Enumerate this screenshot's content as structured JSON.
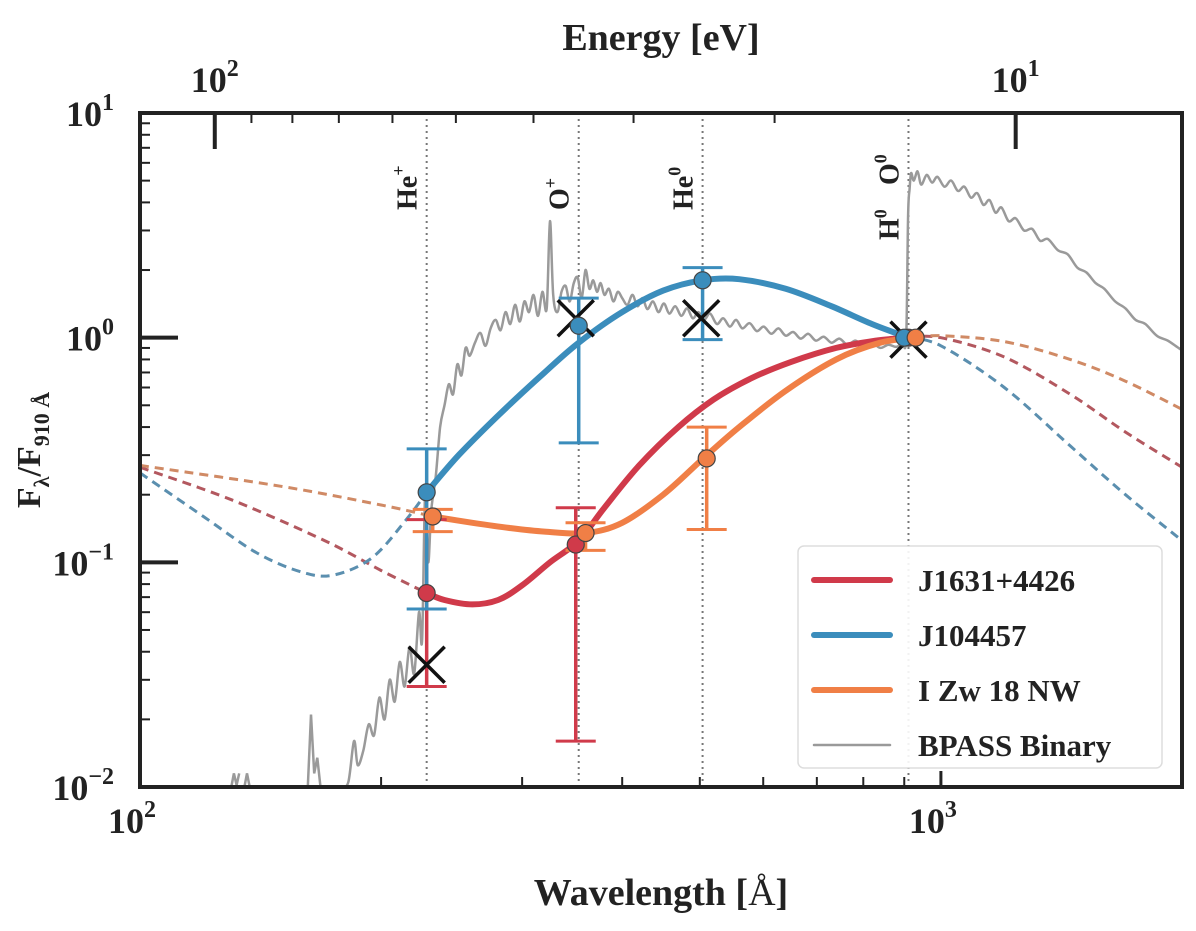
{
  "colors": {
    "red": "#d03a4a",
    "blue": "#3b8dbc",
    "orange": "#f07f46",
    "gray": "#9a9a9a",
    "red_ext": "#b3585f",
    "blue_ext": "#5b8faf",
    "orange_ext": "#d08a65",
    "axis": "#222222",
    "marker_edge": "#7a2a30",
    "cross": "#111111",
    "line_marker": "#666666"
  },
  "chart_data": {
    "type": "line",
    "xscale": "log",
    "yscale": "log",
    "xlim": [
      100,
      2000
    ],
    "ylim": [
      0.01,
      10
    ],
    "xlabel": {
      "main": "Wavelength [",
      "unit": "Å",
      "end": "]"
    },
    "ylabel": {
      "F": "F",
      "lambda": "λ",
      "slash": "/F",
      "sub": "910 Å"
    },
    "top_axis": {
      "label": "Energy [eV]",
      "ticks": [
        {
          "value": 100,
          "base": "10",
          "exp": "2"
        },
        {
          "value": 10,
          "base": "10",
          "exp": "1"
        }
      ]
    },
    "x_ticks": [
      {
        "value": 100,
        "base": "10",
        "exp": "2"
      },
      {
        "value": 1000,
        "base": "10",
        "exp": "3"
      }
    ],
    "y_ticks": [
      {
        "value": 10,
        "base": "10",
        "exp": "1"
      },
      {
        "value": 1,
        "base": "10",
        "exp": "0"
      },
      {
        "value": 0.1,
        "base": "10",
        "exp": "−1"
      },
      {
        "value": 0.01,
        "base": "10",
        "exp": "−2"
      }
    ],
    "ion_lines": [
      {
        "name": "He",
        "sup": "+",
        "wavelength": 228
      },
      {
        "name": "O",
        "sup": "+",
        "wavelength": 353
      },
      {
        "name": "He",
        "sup": "0",
        "wavelength": 504
      },
      {
        "name": "H",
        "sup": "0",
        "wavelength": 911
      },
      {
        "name": "O",
        "sup": "0",
        "wavelength": 911
      }
    ],
    "series": [
      {
        "name": "J1631+4426",
        "color_key": "red",
        "curve": [
          [
            228,
            0.073
          ],
          [
            240,
            0.068
          ],
          [
            260,
            0.065
          ],
          [
            280,
            0.068
          ],
          [
            300,
            0.079
          ],
          [
            325,
            0.1
          ],
          [
            353,
            0.125
          ],
          [
            380,
            0.175
          ],
          [
            420,
            0.27
          ],
          [
            470,
            0.4
          ],
          [
            520,
            0.53
          ],
          [
            580,
            0.66
          ],
          [
            650,
            0.78
          ],
          [
            740,
            0.9
          ],
          [
            830,
            0.97
          ],
          [
            911,
            1.0
          ]
        ],
        "extension": [
          [
            100,
            0.265
          ],
          [
            130,
            0.19
          ],
          [
            170,
            0.125
          ],
          [
            200,
            0.092
          ],
          [
            228,
            0.073
          ],
          [
            911,
            1.0
          ],
          [
            1000,
            1.0
          ],
          [
            1200,
            0.82
          ],
          [
            1450,
            0.56
          ],
          [
            1700,
            0.38
          ],
          [
            2000,
            0.265
          ]
        ],
        "points": [
          {
            "x": 228,
            "y": 0.073,
            "ylo": 0.028,
            "yhi": 0.155
          },
          {
            "x": 350,
            "y": 0.12,
            "ylo": 0.016,
            "yhi": 0.175
          },
          {
            "x": 911,
            "y": 1.0,
            "ylo": 1.0,
            "yhi": 1.0
          }
        ]
      },
      {
        "name": "J104457",
        "color_key": "blue",
        "curve": [
          [
            228,
            0.205
          ],
          [
            250,
            0.3
          ],
          [
            280,
            0.45
          ],
          [
            320,
            0.7
          ],
          [
            353,
            0.95
          ],
          [
            400,
            1.3
          ],
          [
            450,
            1.62
          ],
          [
            504,
            1.8
          ],
          [
            560,
            1.82
          ],
          [
            640,
            1.65
          ],
          [
            730,
            1.38
          ],
          [
            820,
            1.15
          ],
          [
            911,
            1.0
          ]
        ],
        "extension": [
          [
            100,
            0.25
          ],
          [
            120,
            0.16
          ],
          [
            140,
            0.11
          ],
          [
            160,
            0.09
          ],
          [
            175,
            0.088
          ],
          [
            195,
            0.105
          ],
          [
            215,
            0.155
          ],
          [
            228,
            0.205
          ],
          [
            911,
            1.0
          ],
          [
            1000,
            0.92
          ],
          [
            1200,
            0.6
          ],
          [
            1450,
            0.33
          ],
          [
            1700,
            0.2
          ],
          [
            2000,
            0.125
          ]
        ],
        "points": [
          {
            "x": 228,
            "y": 0.205,
            "ylo": 0.062,
            "yhi": 0.32
          },
          {
            "x": 353,
            "y": 1.13,
            "ylo": 0.34,
            "yhi": 1.5
          },
          {
            "x": 504,
            "y": 1.8,
            "ylo": 0.98,
            "yhi": 2.05
          },
          {
            "x": 900,
            "y": 1.0,
            "ylo": 1.0,
            "yhi": 1.0
          }
        ]
      },
      {
        "name": "I Zw 18 NW",
        "color_key": "orange",
        "curve": [
          [
            232,
            0.16
          ],
          [
            260,
            0.15
          ],
          [
            290,
            0.142
          ],
          [
            320,
            0.137
          ],
          [
            360,
            0.135
          ],
          [
            400,
            0.15
          ],
          [
            450,
            0.2
          ],
          [
            505,
            0.29
          ],
          [
            560,
            0.4
          ],
          [
            640,
            0.58
          ],
          [
            740,
            0.8
          ],
          [
            840,
            0.95
          ],
          [
            930,
            1.0
          ]
        ],
        "extension": [
          [
            100,
            0.27
          ],
          [
            150,
            0.218
          ],
          [
            200,
            0.18
          ],
          [
            232,
            0.16
          ],
          [
            930,
            1.0
          ],
          [
            1000,
            1.02
          ],
          [
            1200,
            0.96
          ],
          [
            1450,
            0.8
          ],
          [
            1700,
            0.64
          ],
          [
            2000,
            0.48
          ]
        ],
        "points": [
          {
            "x": 232,
            "y": 0.16,
            "ylo": 0.137,
            "yhi": 0.172
          },
          {
            "x": 360,
            "y": 0.135,
            "ylo": 0.113,
            "yhi": 0.15
          },
          {
            "x": 510,
            "y": 0.29,
            "ylo": 0.14,
            "yhi": 0.4
          },
          {
            "x": 930,
            "y": 1.0,
            "ylo": 1.0,
            "yhi": 1.0
          }
        ]
      }
    ],
    "reference_points": [
      {
        "x": 228,
        "y": 0.035
      },
      {
        "x": 350,
        "y": 1.22
      },
      {
        "x": 502,
        "y": 1.22
      },
      {
        "x": 911,
        "y": 0.98
      }
    ],
    "bpass": {
      "name": "BPASS Binary",
      "spectrum": [
        [
          178,
          0.01
        ],
        [
          182,
          0.0105
        ],
        [
          185,
          0.016
        ],
        [
          187,
          0.0125
        ],
        [
          190,
          0.0145
        ],
        [
          193,
          0.019
        ],
        [
          196,
          0.017
        ],
        [
          199,
          0.025
        ],
        [
          202,
          0.02
        ],
        [
          205,
          0.03
        ],
        [
          208,
          0.024
        ],
        [
          211,
          0.036
        ],
        [
          214,
          0.028
        ],
        [
          217,
          0.042
        ],
        [
          220,
          0.032
        ],
        [
          223,
          0.06
        ],
        [
          225,
          0.045
        ],
        [
          227,
          0.2
        ],
        [
          229,
          0.1
        ],
        [
          231,
          0.17
        ],
        [
          234,
          0.24
        ],
        [
          237,
          0.4
        ],
        [
          240,
          0.5
        ],
        [
          243,
          0.62
        ],
        [
          246,
          0.56
        ],
        [
          249,
          0.76
        ],
        [
          252,
          0.68
        ],
        [
          255,
          0.9
        ],
        [
          258,
          0.83
        ],
        [
          262,
          0.95
        ],
        [
          266,
          1.05
        ],
        [
          270,
          0.92
        ],
        [
          274,
          1.1
        ],
        [
          278,
          1.2
        ],
        [
          282,
          1.08
        ],
        [
          286,
          1.3
        ],
        [
          290,
          1.15
        ],
        [
          294,
          1.4
        ],
        [
          298,
          1.18
        ],
        [
          302,
          1.45
        ],
        [
          306,
          1.3
        ],
        [
          310,
          1.55
        ],
        [
          314,
          1.25
        ],
        [
          318,
          1.6
        ],
        [
          322,
          1.35
        ],
        [
          325,
          3.3
        ],
        [
          328,
          1.55
        ],
        [
          332,
          1.3
        ],
        [
          336,
          1.6
        ],
        [
          340,
          1.7
        ],
        [
          344,
          1.45
        ],
        [
          348,
          1.75
        ],
        [
          352,
          1.85
        ],
        [
          356,
          1.5
        ],
        [
          360,
          2.0
        ],
        [
          364,
          1.65
        ],
        [
          368,
          1.8
        ],
        [
          372,
          1.6
        ],
        [
          376,
          1.75
        ],
        [
          380,
          1.55
        ],
        [
          385,
          1.65
        ],
        [
          390,
          1.45
        ],
        [
          395,
          1.6
        ],
        [
          400,
          1.5
        ],
        [
          406,
          1.4
        ],
        [
          412,
          1.55
        ],
        [
          418,
          1.38
        ],
        [
          424,
          1.5
        ],
        [
          430,
          1.34
        ],
        [
          437,
          1.45
        ],
        [
          444,
          1.3
        ],
        [
          451,
          1.42
        ],
        [
          458,
          1.28
        ],
        [
          466,
          1.38
        ],
        [
          474,
          1.25
        ],
        [
          482,
          1.35
        ],
        [
          490,
          1.22
        ],
        [
          498,
          1.3
        ],
        [
          506,
          1.2
        ],
        [
          515,
          1.28
        ],
        [
          525,
          1.15
        ],
        [
          535,
          1.22
        ],
        [
          545,
          1.12
        ],
        [
          555,
          1.2
        ],
        [
          565,
          1.1
        ],
        [
          577,
          1.16
        ],
        [
          589,
          1.07
        ],
        [
          601,
          1.12
        ],
        [
          614,
          1.04
        ],
        [
          627,
          1.1
        ],
        [
          640,
          1.02
        ],
        [
          654,
          1.06
        ],
        [
          668,
          0.99
        ],
        [
          683,
          1.04
        ],
        [
          698,
          0.97
        ],
        [
          714,
          1.01
        ],
        [
          730,
          0.95
        ],
        [
          747,
          0.99
        ],
        [
          764,
          0.93
        ],
        [
          782,
          0.97
        ],
        [
          800,
          0.92
        ],
        [
          820,
          0.95
        ],
        [
          840,
          0.9
        ],
        [
          860,
          0.93
        ],
        [
          880,
          0.91
        ],
        [
          895,
          0.95
        ],
        [
          905,
          1.0
        ],
        [
          910,
          3.5
        ],
        [
          914,
          4.6
        ],
        [
          918,
          5.4
        ],
        [
          925,
          5.0
        ],
        [
          935,
          5.5
        ],
        [
          945,
          4.8
        ],
        [
          960,
          5.3
        ],
        [
          975,
          4.9
        ],
        [
          990,
          5.2
        ],
        [
          1010,
          4.7
        ],
        [
          1030,
          5.0
        ],
        [
          1050,
          4.5
        ],
        [
          1070,
          4.7
        ],
        [
          1090,
          4.2
        ],
        [
          1110,
          4.4
        ],
        [
          1130,
          3.9
        ],
        [
          1150,
          4.1
        ],
        [
          1170,
          3.6
        ],
        [
          1190,
          3.8
        ],
        [
          1215,
          3.3
        ],
        [
          1240,
          3.4
        ],
        [
          1270,
          3.0
        ],
        [
          1300,
          3.05
        ],
        [
          1330,
          2.7
        ],
        [
          1360,
          2.75
        ],
        [
          1400,
          2.45
        ],
        [
          1440,
          2.35
        ],
        [
          1480,
          2.05
        ],
        [
          1520,
          1.95
        ],
        [
          1560,
          1.75
        ],
        [
          1600,
          1.65
        ],
        [
          1650,
          1.45
        ],
        [
          1700,
          1.35
        ],
        [
          1750,
          1.2
        ],
        [
          1800,
          1.15
        ],
        [
          1860,
          1.02
        ],
        [
          1920,
          0.97
        ],
        [
          1980,
          0.9
        ],
        [
          2000,
          0.88
        ]
      ],
      "extra_bumps": [
        {
          "x": [
            130,
            131,
            132,
            133
          ],
          "y": [
            0.01,
            0.0115,
            0.0102,
            0.0115
          ]
        },
        {
          "x": [
            135,
            136,
            137
          ],
          "y": [
            0.01,
            0.0115,
            0.0101
          ]
        },
        {
          "x": [
            162,
            163.5,
            165,
            166.5,
            168
          ],
          "y": [
            0.01,
            0.021,
            0.0115,
            0.0135,
            0.01
          ]
        }
      ]
    },
    "legend": {
      "position": "lower-right",
      "entries": [
        {
          "label": "J1631+4426",
          "color_key": "red",
          "kind": "thick"
        },
        {
          "label": "J104457",
          "color_key": "blue",
          "kind": "thick"
        },
        {
          "label": "I Zw 18 NW",
          "color_key": "orange",
          "kind": "thick"
        },
        {
          "label": "BPASS Binary",
          "color_key": "gray",
          "kind": "thin"
        }
      ]
    }
  }
}
